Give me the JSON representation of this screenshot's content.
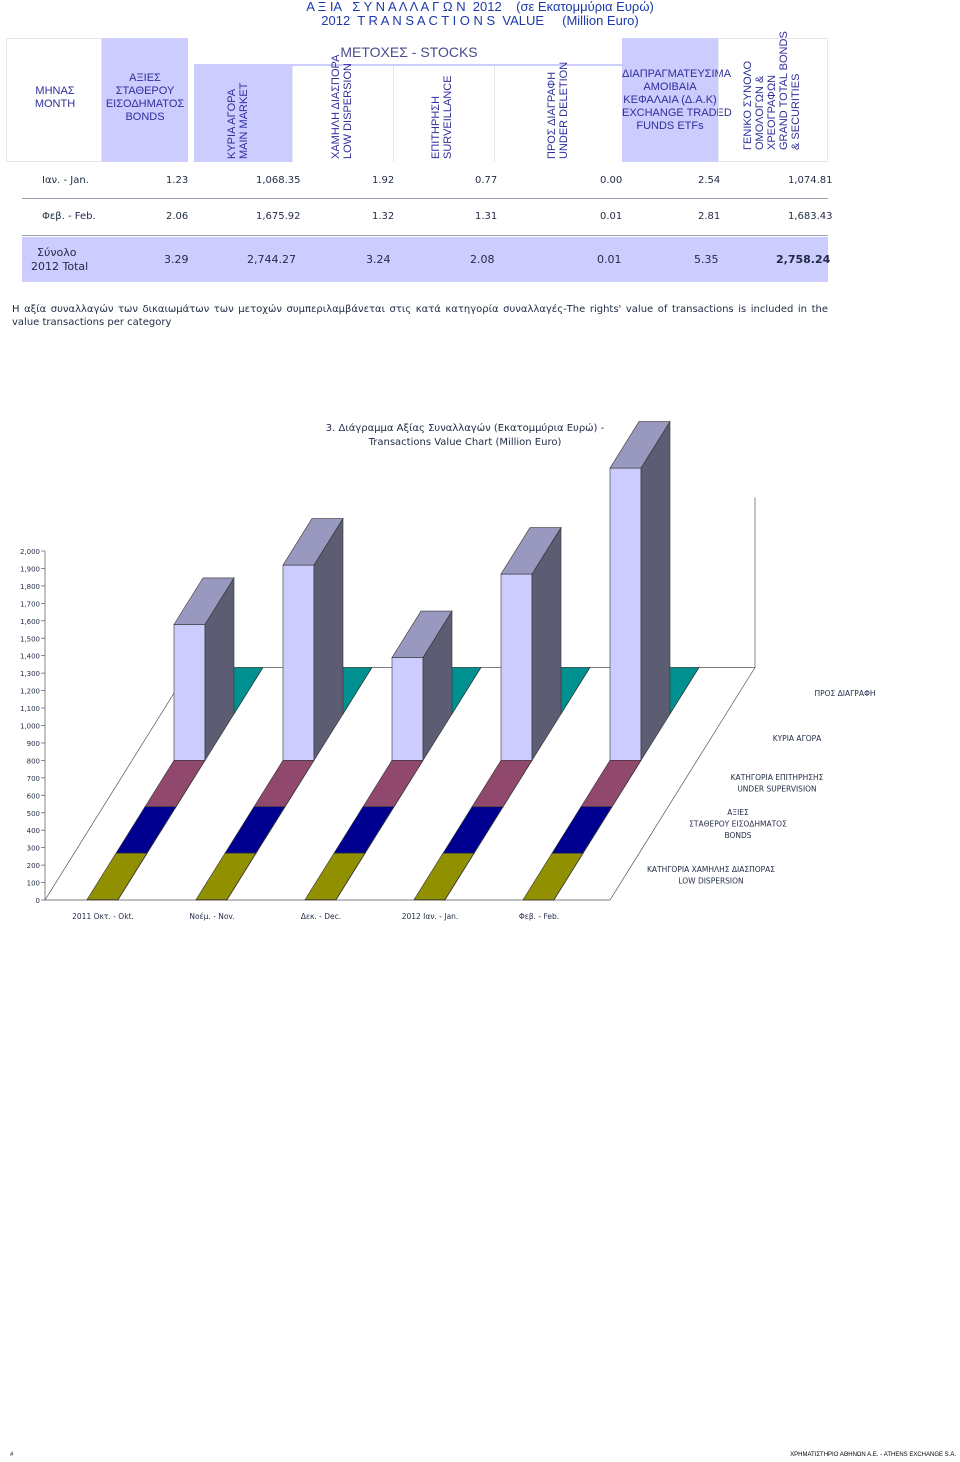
{
  "title": {
    "line1": "Α Ξ ΙΑ   Σ Υ Ν Α Λ Λ Α Γ Ω Ν  2012    (σε Εκατομμύρια Ευρώ)",
    "line2": "2012  T R A N S A C T I O N S  VALUE     (Million Euro)"
  },
  "header": {
    "month": "ΜΗΝΑΣ\nMONTH",
    "bonds": "ΑΞΙΕΣ\nΣΤΑΘΕΡΟΥ\nΕΙΣΟΔΗΜΑΤΟΣ\nBONDS",
    "stocks": "ΜΕΤΟΧΕΣ  -  STOCKS",
    "main_market": "ΚΥΡΙΑ ΑΓΟΡΑ\nMAIN MARKET",
    "low_dispersion": "ΧΑΜΗΛΗ ΔΙΑΣΠΟΡΑ\nLOW DISPERSION",
    "surveillance": "ΕΠΙΤΗΡΗΣΗ\nSURVEILLANCE",
    "under_deletion": "ΠΡΟΣ ΔΙΑΓΡΑΦΗ\nUNDER DELETION",
    "etfs": "ΔΙΑΠΡΑΓΜΑΤΕΥΣΙΜΑ\nΑΜΟΙΒΑΙΑ\nΚΕΦΑΛΑΙΑ (Δ.Α.Κ)\nEXCHANGE TRADED\nFUNDS ETFs",
    "grand_total": "ΓΕΝΙΚΟ ΣΥΝΟΛΟ\nΟΜΟΛΟΓΩΝ &\nΧΡΕΟΓΡΑΦΩΝ\nGRAND TOTAL BONDS\n& SECURITIES"
  },
  "rows": [
    {
      "month": "Ιαν. - Jan.",
      "bonds": "1.23",
      "main": "1,068.35",
      "low": "1.92",
      "surv": "0.77",
      "del": "0.00",
      "etf": "2.54",
      "total": "1,074.81"
    },
    {
      "month": "Φεβ. - Feb.",
      "bonds": "2.06",
      "main": "1,675.92",
      "low": "1.32",
      "surv": "1.31",
      "del": "0.01",
      "etf": "2.81",
      "total": "1,683.43"
    }
  ],
  "total_row": {
    "label1": "Σύνολο",
    "label2": "2012 Total",
    "bonds": "3.29",
    "main": "2,744.27",
    "low": "3.24",
    "surv": "2.08",
    "del": "0.01",
    "etf": "5.35",
    "total": "2,758.24"
  },
  "note": "Η αξία συναλλαγών των δικαιωμάτων των μετοχών συμπεριλαμβάνεται στις κατά κατηγορία συναλλαγές-The rights' value of transactions is included in the value transactions per category",
  "chart_title": {
    "line1": "3.  Διάγραμμα Αξίας Συναλλαγών (Εκατομμύρια Ευρώ) -",
    "line2": "Transactions Value Chart  (Million Euro)"
  },
  "chart_data": {
    "type": "bar",
    "title": "3.  Διάγραμμα Αξίας Συναλλαγών (Εκατομμύρια Ευρώ) - Transactions Value Chart  (Million Euro)",
    "categories": [
      "2011 Οκτ. - Okt.",
      "Νοέμ. - Nov.",
      "Δεκ. - Dec.",
      "2012  Ιαν. - Jan.",
      "Φεβ. - Feb."
    ],
    "ylim": [
      0,
      2000
    ],
    "yticks": [
      "0",
      "100",
      "200",
      "300",
      "400",
      "500",
      "600",
      "700",
      "800",
      "900",
      "1,000",
      "1,100",
      "1,200",
      "1,300",
      "1,400",
      "1,500",
      "1,600",
      "1,700",
      "1,800",
      "1,900",
      "2,000"
    ],
    "grid": false,
    "series": [
      {
        "name": "ΚΑΤΗΓΟΡΙΑ ΧΑΜΗΛΗΣ ΔΙΑΣΠΟΡΑΣ\nLOW DISPERSION",
        "color": "#c0c000",
        "values": [
          2,
          2,
          2,
          1.92,
          1.32
        ]
      },
      {
        "name": "ΑΞΙΕΣ\nΣΤΑΘΕΡΟΥ ΕΙΣΟΔΗΜΑΤΟΣ\nBONDS",
        "color": "#0000c0",
        "values": [
          2,
          2,
          2,
          1.23,
          2.06
        ]
      },
      {
        "name": "ΚΑΤΗΓΟΡΙΑ ΕΠΙΤΗΡΗΣΗΣ\nUNDER SUPERVISION",
        "color": "#c06090",
        "values": [
          1,
          1,
          1,
          0.77,
          1.31
        ]
      },
      {
        "name": "ΚΥΡΙΑ ΑΓΟΡΑ",
        "color": "#ccccff",
        "values": [
          780,
          1120,
          590,
          1068.35,
          1675.92
        ]
      },
      {
        "name": "ΠΡΟΣ ΔΙΑΓΡΑΦΗ",
        "color": "#00c0c0",
        "values": [
          0,
          0,
          0,
          0,
          0.01
        ]
      }
    ]
  },
  "footer": {
    "left": "#",
    "right": "ΧΡΗΜΑΤΙΣΤΗΡΙΟ ΑΘΗΝΩΝ Α.Ε. - ATHENS EXCHANGE S.A."
  }
}
